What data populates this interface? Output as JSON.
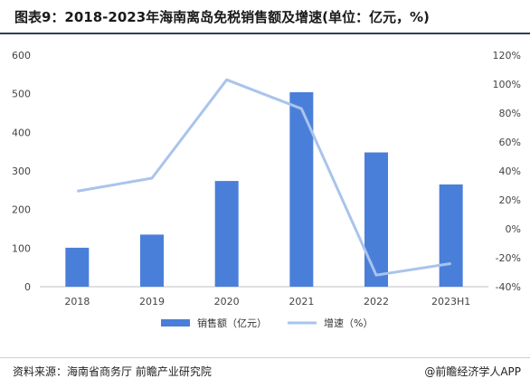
{
  "header": {
    "title": "图表9：2018-2023年海南离岛免税销售额及增速(单位：亿元，%)"
  },
  "chart_data": {
    "type": "bar",
    "categories": [
      "2018",
      "2019",
      "2020",
      "2021",
      "2022",
      "2023H1"
    ],
    "series": [
      {
        "name": "销售额（亿元）",
        "type": "bar",
        "axis": "left",
        "color": "#4a7fd9",
        "values": [
          101,
          135,
          274,
          504,
          348,
          265
        ]
      },
      {
        "name": "增速（%）",
        "type": "line",
        "axis": "right",
        "color": "#a9c4ec",
        "values": [
          26,
          35,
          103,
          83,
          -32,
          -24
        ]
      }
    ],
    "left_axis": {
      "ylim": [
        0,
        600
      ],
      "ticks": [
        "0",
        "100",
        "200",
        "300",
        "400",
        "500",
        "600"
      ]
    },
    "right_axis": {
      "ylim": [
        -40,
        120
      ],
      "ticks": [
        "-40%",
        "-20%",
        "0%",
        "20%",
        "40%",
        "60%",
        "80%",
        "100%",
        "120%"
      ]
    },
    "legend_position": "bottom-center",
    "grid": false
  },
  "footer": {
    "source": "资料来源：海南省商务厅 前瞻产业研究院",
    "credit": "@前瞻经济学人APP"
  }
}
